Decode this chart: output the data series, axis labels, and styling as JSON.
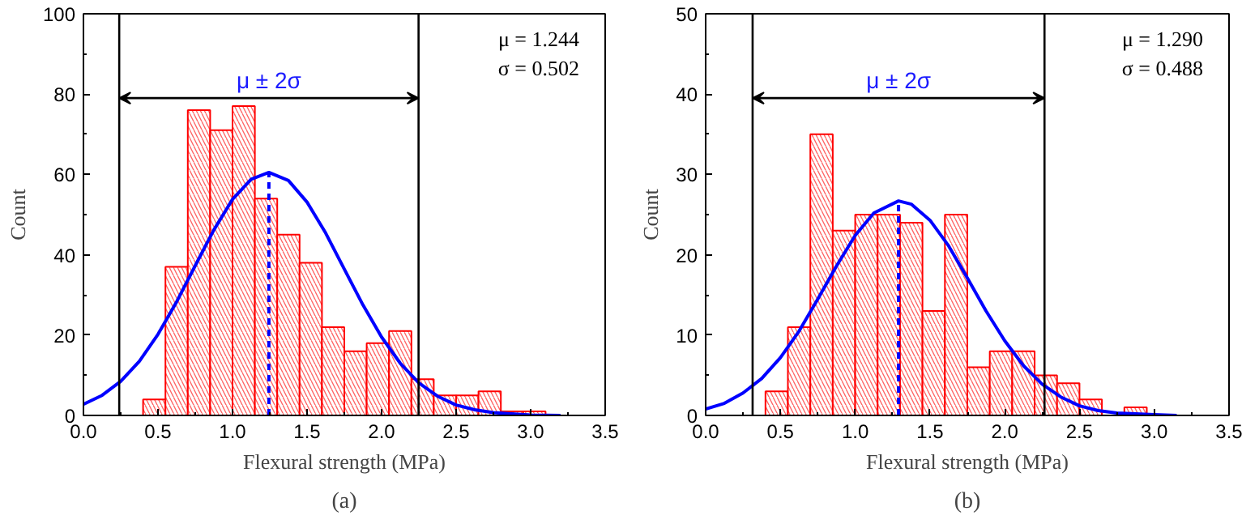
{
  "chart_data": [
    {
      "type": "histogram",
      "title": "(a)",
      "xlabel": "Flexural strength (MPa)",
      "ylabel": "Count",
      "bins": [
        0.4,
        0.55,
        0.7,
        0.85,
        1.0,
        1.15,
        1.3,
        1.45,
        1.6,
        1.75,
        1.9,
        2.05,
        2.2,
        2.35,
        2.5,
        2.65,
        2.8,
        2.95,
        3.1
      ],
      "values": [
        4,
        37,
        76,
        71,
        77,
        54,
        45,
        38,
        22,
        16,
        18,
        21,
        9,
        5,
        5,
        6,
        1,
        1
      ],
      "color": "#ff0000",
      "series": [
        {
          "type": "line",
          "color": "#0000ff",
          "x": [
            0,
            0.125,
            0.25,
            0.375,
            0.5,
            0.625,
            0.75,
            0.875,
            1.0,
            1.125,
            1.244,
            1.375,
            1.5,
            1.625,
            1.75,
            1.875,
            2.0,
            2.125,
            2.25,
            2.375,
            2.5,
            2.625,
            2.75,
            3.0,
            3.2
          ],
          "values": [
            2.8,
            5.0,
            8.5,
            13.5,
            20.2,
            28.3,
            37.3,
            46.2,
            53.8,
            58.8,
            60.5,
            58.5,
            53.1,
            45.4,
            36.4,
            27.5,
            19.5,
            13.0,
            8.1,
            4.8,
            2.6,
            1.4,
            0.7,
            0.1,
            0
          ]
        },
        {
          "type": "line",
          "color": "#0000ff",
          "line_style": "dashed",
          "x": [
            1.244,
            1.244
          ],
          "values": [
            0,
            60.5
          ]
        }
      ],
      "ref_lines": [
        {
          "axis": "x",
          "value": 0.24,
          "color": "#000000"
        },
        {
          "axis": "x",
          "value": 2.248,
          "color": "#000000"
        }
      ],
      "annotations": [
        "μ ± 2σ",
        "μ = 1.244",
        "σ = 0.502"
      ],
      "xlim": [
        0,
        3.5
      ],
      "ylim": [
        0,
        100
      ],
      "xticks": [
        {
          "value": 0,
          "label": "0.0"
        },
        {
          "value": 0.5,
          "label": "0.5"
        },
        {
          "value": 1,
          "label": "1.0"
        },
        {
          "value": 1.5,
          "label": "1.5"
        },
        {
          "value": 2,
          "label": "2.0"
        },
        {
          "value": 2.5,
          "label": "2.5"
        },
        {
          "value": 3,
          "label": "3.0"
        },
        {
          "value": 3.5,
          "label": "3.5"
        }
      ],
      "yticks": [
        0,
        20,
        40,
        60,
        80,
        100
      ]
    },
    {
      "type": "histogram",
      "title": "(b)",
      "xlabel": "Flexural strength (MPa)",
      "ylabel": "Count",
      "bins": [
        0.4,
        0.55,
        0.7,
        0.85,
        1.0,
        1.15,
        1.3,
        1.45,
        1.6,
        1.75,
        1.9,
        2.05,
        2.2,
        2.35,
        2.5,
        2.65,
        2.8,
        2.95
      ],
      "values": [
        3,
        11,
        35,
        23,
        25,
        25,
        24,
        13,
        25,
        6,
        8,
        8,
        5,
        4,
        2,
        0,
        1
      ],
      "color": "#ff0000",
      "series": [
        {
          "type": "line",
          "color": "#0000ff",
          "x": [
            0,
            0.125,
            0.25,
            0.375,
            0.5,
            0.625,
            0.75,
            0.875,
            1.0,
            1.125,
            1.29,
            1.375,
            1.5,
            1.625,
            1.75,
            1.875,
            2.0,
            2.125,
            2.25,
            2.375,
            2.5,
            2.625,
            2.75,
            3.0,
            3.15
          ],
          "values": [
            0.8,
            1.5,
            2.8,
            4.6,
            7.2,
            10.5,
            14.5,
            18.6,
            22.4,
            25.2,
            26.7,
            26.3,
            24.3,
            21.1,
            17.1,
            13.0,
            9.3,
            6.2,
            3.9,
            2.3,
            1.2,
            0.6,
            0.3,
            0.1,
            0
          ]
        },
        {
          "type": "line",
          "color": "#0000ff",
          "line_style": "dashed",
          "x": [
            1.29,
            1.29
          ],
          "values": [
            0,
            26.7
          ]
        }
      ],
      "ref_lines": [
        {
          "axis": "x",
          "value": 0.314,
          "color": "#000000"
        },
        {
          "axis": "x",
          "value": 2.266,
          "color": "#000000"
        }
      ],
      "annotations": [
        "μ ± 2σ",
        "μ = 1.290",
        "σ = 0.488"
      ],
      "xlim": [
        0,
        3.5
      ],
      "ylim": [
        0,
        50
      ],
      "xticks": [
        {
          "value": 0,
          "label": "0.0"
        },
        {
          "value": 0.5,
          "label": "0.5"
        },
        {
          "value": 1,
          "label": "1.0"
        },
        {
          "value": 1.5,
          "label": "1.5"
        },
        {
          "value": 2,
          "label": "2.0"
        },
        {
          "value": 2.5,
          "label": "2.5"
        },
        {
          "value": 3,
          "label": "3.0"
        },
        {
          "value": 3.5,
          "label": "3.5"
        }
      ],
      "yticks": [
        0,
        10,
        20,
        30,
        40,
        50
      ]
    }
  ]
}
